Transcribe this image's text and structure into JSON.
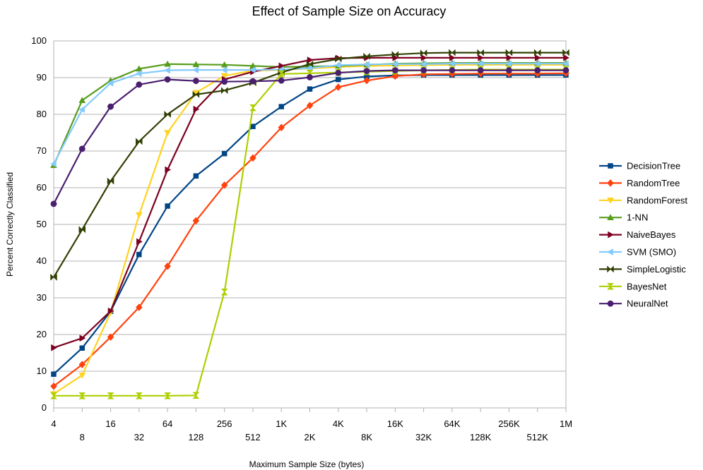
{
  "chart_data": {
    "type": "line",
    "title": "Effect of Sample Size on Accuracy",
    "xlabel": "Maximum Sample Size (bytes)",
    "ylabel": "Percent Correctly Classified",
    "ylim": [
      0,
      100
    ],
    "yticks": [
      0,
      10,
      20,
      30,
      40,
      50,
      60,
      70,
      80,
      90,
      100
    ],
    "grid": "horizontal",
    "legend": "right",
    "categories": [
      "4",
      "8",
      "16",
      "32",
      "64",
      "128",
      "256",
      "512",
      "1K",
      "2K",
      "4K",
      "8K",
      "16K",
      "32K",
      "64K",
      "128K",
      "256K",
      "512K",
      "1M"
    ],
    "series": [
      {
        "name": "DecisionTree",
        "color": "#004586",
        "marker": "square",
        "values": [
          9.2,
          16.3,
          26.3,
          41.8,
          55.0,
          63.2,
          69.3,
          76.7,
          82.1,
          86.9,
          89.5,
          90.3,
          90.6,
          90.7,
          90.7,
          90.7,
          90.7,
          90.7,
          90.7
        ]
      },
      {
        "name": "RandomTree",
        "color": "#ff420e",
        "marker": "diamond",
        "values": [
          5.9,
          11.8,
          19.3,
          27.4,
          38.6,
          51.0,
          60.7,
          68.1,
          76.4,
          82.4,
          87.4,
          89.2,
          90.4,
          90.9,
          91.0,
          91.1,
          91.1,
          91.1,
          91.2
        ]
      },
      {
        "name": "RandomForest",
        "color": "#ffd320",
        "marker": "triangle-down",
        "values": [
          3.8,
          8.9,
          26.0,
          52.6,
          75.0,
          85.9,
          90.5,
          91.9,
          92.1,
          92.5,
          92.9,
          93.2,
          93.3,
          93.4,
          93.5,
          93.5,
          93.5,
          93.5,
          93.5
        ]
      },
      {
        "name": "1-NN",
        "color": "#579d1c",
        "marker": "triangle-up",
        "values": [
          66.1,
          83.8,
          89.2,
          92.4,
          93.7,
          93.6,
          93.5,
          93.2,
          92.9,
          93.0,
          93.2,
          93.5,
          93.8,
          93.9,
          94.0,
          94.0,
          94.0,
          94.0,
          94.0
        ]
      },
      {
        "name": "NaiveBayes",
        "color": "#7e0021",
        "marker": "triangle-right",
        "values": [
          16.4,
          19.0,
          26.4,
          45.3,
          64.9,
          81.4,
          89.5,
          91.6,
          93.2,
          94.8,
          95.3,
          95.4,
          95.4,
          95.4,
          95.4,
          95.4,
          95.4,
          95.4,
          95.4
        ]
      },
      {
        "name": "SVM (SMO)",
        "color": "#83caff",
        "marker": "triangle-left",
        "values": [
          66.5,
          81.3,
          88.5,
          91.1,
          92.0,
          92.1,
          92.1,
          92.1,
          92.2,
          92.6,
          93.4,
          93.6,
          93.7,
          93.7,
          93.8,
          93.8,
          93.8,
          93.8,
          93.8
        ]
      },
      {
        "name": "SimpleLogistic",
        "color": "#314004",
        "marker": "bowtie",
        "values": [
          35.6,
          48.6,
          61.8,
          72.6,
          80.0,
          85.4,
          86.5,
          88.6,
          91.4,
          93.7,
          95.1,
          95.8,
          96.3,
          96.7,
          96.8,
          96.8,
          96.8,
          96.8,
          96.8
        ]
      },
      {
        "name": "BayesNet",
        "color": "#aecf00",
        "marker": "hourglass",
        "values": [
          3.3,
          3.3,
          3.3,
          3.3,
          3.3,
          3.4,
          31.6,
          81.8,
          91.0,
          91.2,
          91.4,
          91.6,
          91.8,
          92.0,
          92.1,
          92.2,
          92.2,
          92.2,
          92.2
        ]
      },
      {
        "name": "NeuralNet",
        "color": "#4b1f6f",
        "marker": "circle",
        "values": [
          55.6,
          70.6,
          82.1,
          88.1,
          89.5,
          89.1,
          88.9,
          89.0,
          89.2,
          90.1,
          91.3,
          91.8,
          92.0,
          92.0,
          92.0,
          92.0,
          92.0,
          92.0,
          92.0
        ]
      }
    ]
  }
}
